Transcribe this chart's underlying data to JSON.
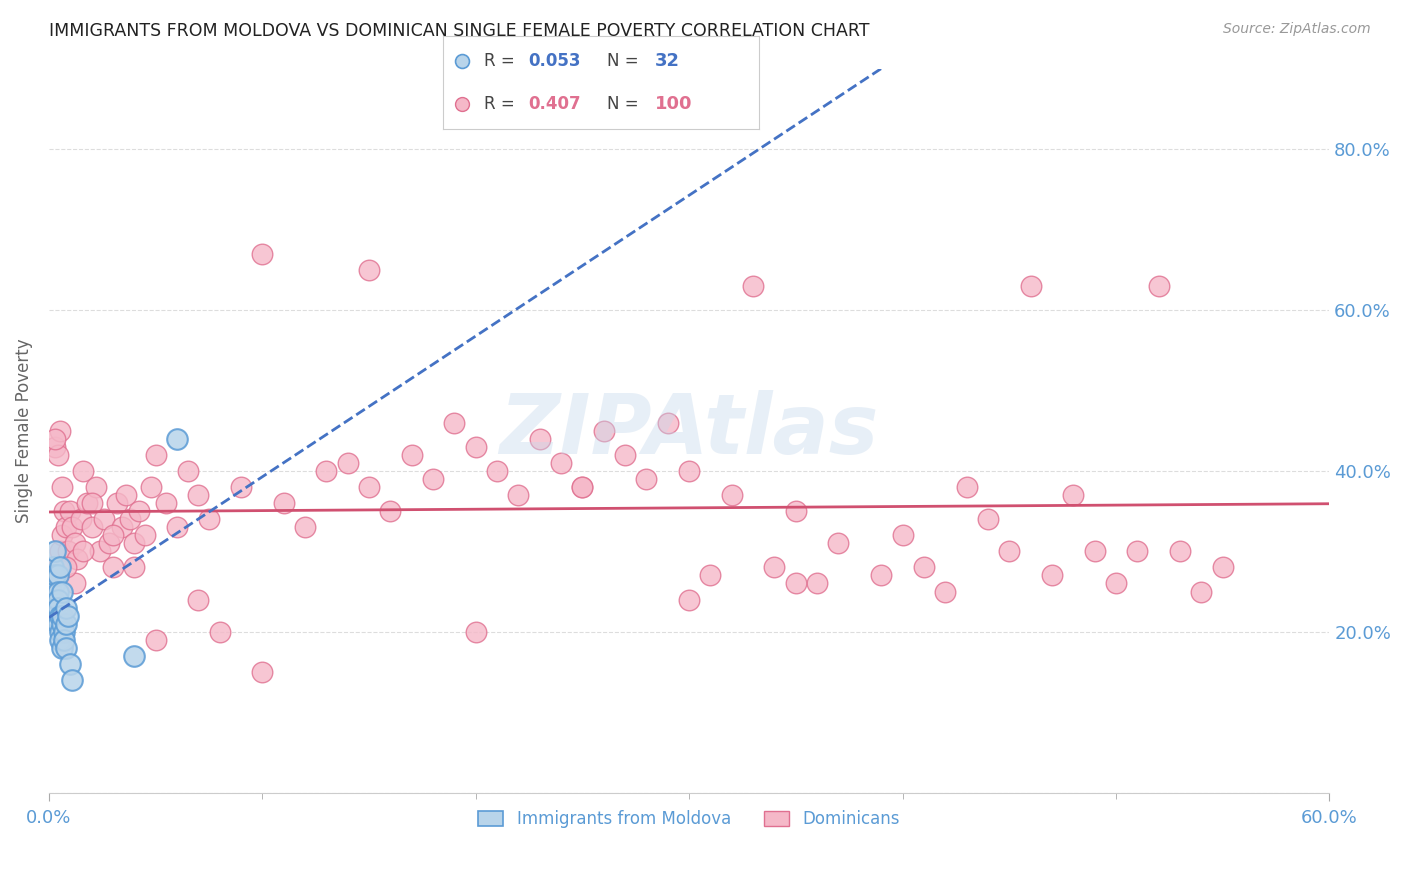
{
  "title": "IMMIGRANTS FROM MOLDOVA VS DOMINICAN SINGLE FEMALE POVERTY CORRELATION CHART",
  "source": "Source: ZipAtlas.com",
  "ylabel": "Single Female Poverty",
  "xlim": [
    0.0,
    0.6
  ],
  "ylim": [
    0.0,
    0.9
  ],
  "xticks": [
    0.0,
    0.6
  ],
  "xtick_labels": [
    "0.0%",
    "60.0%"
  ],
  "xticks_minor": [
    0.1,
    0.2,
    0.3,
    0.4,
    0.5
  ],
  "yticks": [
    0.0,
    0.2,
    0.4,
    0.6,
    0.8
  ],
  "ytick_labels": [
    "",
    "20.0%",
    "40.0%",
    "60.0%",
    "80.0%"
  ],
  "moldova_color": "#b8d4ea",
  "dominican_color": "#f5b8c8",
  "moldova_edge": "#5b9bd5",
  "dominican_edge": "#e07090",
  "trendline_moldova_color": "#4472c4",
  "trendline_dominican_color": "#d05070",
  "legend_R_moldova": "0.053",
  "legend_N_moldova": "32",
  "legend_R_dominican": "0.407",
  "legend_N_dominican": "100",
  "moldova_x": [
    0.001,
    0.002,
    0.002,
    0.002,
    0.003,
    0.003,
    0.003,
    0.003,
    0.003,
    0.004,
    0.004,
    0.004,
    0.004,
    0.004,
    0.005,
    0.005,
    0.005,
    0.005,
    0.006,
    0.006,
    0.006,
    0.006,
    0.007,
    0.007,
    0.008,
    0.008,
    0.008,
    0.009,
    0.01,
    0.011,
    0.04,
    0.06
  ],
  "moldova_y": [
    0.25,
    0.27,
    0.28,
    0.24,
    0.26,
    0.3,
    0.27,
    0.23,
    0.22,
    0.27,
    0.25,
    0.21,
    0.24,
    0.23,
    0.22,
    0.28,
    0.2,
    0.19,
    0.21,
    0.18,
    0.22,
    0.25,
    0.2,
    0.19,
    0.21,
    0.18,
    0.23,
    0.22,
    0.16,
    0.14,
    0.17,
    0.44
  ],
  "dominican_x": [
    0.002,
    0.003,
    0.004,
    0.005,
    0.005,
    0.006,
    0.007,
    0.008,
    0.009,
    0.01,
    0.011,
    0.012,
    0.013,
    0.015,
    0.016,
    0.018,
    0.02,
    0.022,
    0.024,
    0.026,
    0.028,
    0.03,
    0.032,
    0.034,
    0.036,
    0.038,
    0.04,
    0.042,
    0.045,
    0.048,
    0.05,
    0.055,
    0.06,
    0.065,
    0.07,
    0.075,
    0.08,
    0.09,
    0.1,
    0.11,
    0.12,
    0.13,
    0.14,
    0.15,
    0.16,
    0.17,
    0.18,
    0.19,
    0.2,
    0.21,
    0.22,
    0.23,
    0.24,
    0.25,
    0.26,
    0.27,
    0.28,
    0.29,
    0.3,
    0.31,
    0.32,
    0.33,
    0.34,
    0.35,
    0.36,
    0.37,
    0.39,
    0.4,
    0.41,
    0.42,
    0.43,
    0.44,
    0.45,
    0.46,
    0.47,
    0.48,
    0.49,
    0.5,
    0.51,
    0.52,
    0.53,
    0.54,
    0.55,
    0.3,
    0.35,
    0.2,
    0.1,
    0.15,
    0.25,
    0.05,
    0.07,
    0.04,
    0.03,
    0.02,
    0.016,
    0.012,
    0.008,
    0.006,
    0.004,
    0.003
  ],
  "dominican_y": [
    0.27,
    0.43,
    0.28,
    0.3,
    0.45,
    0.32,
    0.35,
    0.33,
    0.3,
    0.35,
    0.33,
    0.31,
    0.29,
    0.34,
    0.4,
    0.36,
    0.33,
    0.38,
    0.3,
    0.34,
    0.31,
    0.28,
    0.36,
    0.33,
    0.37,
    0.34,
    0.31,
    0.35,
    0.32,
    0.38,
    0.42,
    0.36,
    0.33,
    0.4,
    0.37,
    0.34,
    0.2,
    0.38,
    0.15,
    0.36,
    0.33,
    0.4,
    0.41,
    0.38,
    0.35,
    0.42,
    0.39,
    0.46,
    0.43,
    0.4,
    0.37,
    0.44,
    0.41,
    0.38,
    0.45,
    0.42,
    0.39,
    0.46,
    0.4,
    0.27,
    0.37,
    0.63,
    0.28,
    0.35,
    0.26,
    0.31,
    0.27,
    0.32,
    0.28,
    0.25,
    0.38,
    0.34,
    0.3,
    0.63,
    0.27,
    0.37,
    0.3,
    0.26,
    0.3,
    0.63,
    0.3,
    0.25,
    0.28,
    0.24,
    0.26,
    0.2,
    0.67,
    0.65,
    0.38,
    0.19,
    0.24,
    0.28,
    0.32,
    0.36,
    0.3,
    0.26,
    0.28,
    0.38,
    0.42,
    0.44
  ],
  "background_color": "#ffffff",
  "grid_color": "#dddddd",
  "tick_color": "#5b9bd5",
  "axis_label_color": "#666666",
  "title_color": "#222222",
  "watermark_color": "#c5d8ec",
  "watermark_alpha": 0.4
}
